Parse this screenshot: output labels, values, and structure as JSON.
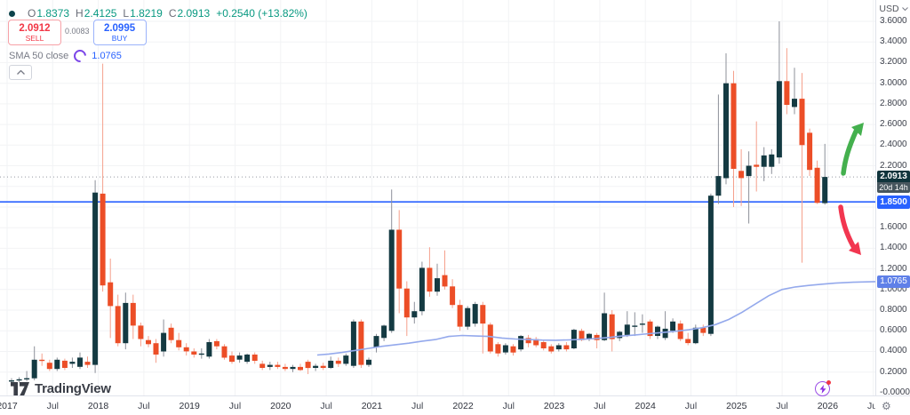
{
  "legend": {
    "o_label": "O",
    "o_value": "1.8373",
    "h_label": "H",
    "h_value": "2.4125",
    "l_label": "L",
    "l_value": "1.8219",
    "c_label": "C",
    "c_value": "2.0913",
    "change": "+0.2540 (+13.82%)"
  },
  "order_panel": {
    "sell_price": "2.0912",
    "sell_label": "SELL",
    "spread": "0.0083",
    "buy_price": "2.0995",
    "buy_label": "BUY"
  },
  "indicator": {
    "name": "SMA 50 close",
    "value": "1.0765"
  },
  "logo": {
    "text": "TradingView"
  },
  "price_axis": {
    "currency": "USD",
    "tick_labels": [
      "3.6000",
      "3.4000",
      "3.2000",
      "3.0000",
      "2.8000",
      "2.6000",
      "2.4000",
      "2.2000",
      "2.0000",
      "1.8000",
      "1.6000",
      "1.4000",
      "1.2000",
      "1.0000",
      "0.8000",
      "0.6000",
      "0.4000",
      "0.2000",
      "-0.0000"
    ],
    "last_price": "2.0913",
    "countdown": "20d 14h",
    "alert_price": "1.8500",
    "sma_price": "1.0765"
  },
  "time_axis": {
    "ticks": [
      {
        "label": "2017",
        "major": true
      },
      {
        "label": "Jul",
        "major": false
      },
      {
        "label": "2018",
        "major": true
      },
      {
        "label": "Jul",
        "major": false
      },
      {
        "label": "2019",
        "major": true
      },
      {
        "label": "Jul",
        "major": false
      },
      {
        "label": "2020",
        "major": true
      },
      {
        "label": "Jul",
        "major": false
      },
      {
        "label": "2021",
        "major": true
      },
      {
        "label": "Jul",
        "major": false
      },
      {
        "label": "2022",
        "major": true
      },
      {
        "label": "Jul",
        "major": false
      },
      {
        "label": "2023",
        "major": true
      },
      {
        "label": "Jul",
        "major": false
      },
      {
        "label": "2024",
        "major": true
      },
      {
        "label": "Jul",
        "major": false
      },
      {
        "label": "2025",
        "major": true
      },
      {
        "label": "Jul",
        "major": false
      },
      {
        "label": "2026",
        "major": true
      },
      {
        "label": "Jul",
        "major": false
      }
    ]
  },
  "chart_data": {
    "type": "candlestick",
    "unit": "USD",
    "timeframe": "monthly",
    "ylim": [
      0,
      3.6
    ],
    "y_tick_step": 0.2,
    "x_range_years": [
      2017,
      2026
    ],
    "current_bar": {
      "open": 1.8373,
      "high": 2.4125,
      "low": 1.8219,
      "close": 2.0913,
      "change": 0.254,
      "change_pct": 13.82,
      "countdown": "20d 14h"
    },
    "candles": [
      [
        0.12,
        0.14,
        0.1,
        0.12
      ],
      [
        0.12,
        0.15,
        0.1,
        0.13
      ],
      [
        0.13,
        0.21,
        0.11,
        0.14
      ],
      [
        0.14,
        0.45,
        0.12,
        0.32
      ],
      [
        0.32,
        0.38,
        0.26,
        0.31
      ],
      [
        0.29,
        0.32,
        0.21,
        0.23
      ],
      [
        0.23,
        0.34,
        0.21,
        0.32
      ],
      [
        0.31,
        0.33,
        0.22,
        0.24
      ],
      [
        0.28,
        0.34,
        0.24,
        0.3
      ],
      [
        0.25,
        0.39,
        0.23,
        0.34
      ],
      [
        0.3,
        0.35,
        0.24,
        0.27
      ],
      [
        0.27,
        2.06,
        0.19,
        1.94
      ],
      [
        1.93,
        3.19,
        0.98,
        1.04
      ],
      [
        1.07,
        1.3,
        0.53,
        0.84
      ],
      [
        0.84,
        0.95,
        0.45,
        0.48
      ],
      [
        0.48,
        0.97,
        0.42,
        0.87
      ],
      [
        0.87,
        0.95,
        0.52,
        0.65
      ],
      [
        0.65,
        0.68,
        0.45,
        0.52
      ],
      [
        0.51,
        0.55,
        0.44,
        0.47
      ],
      [
        0.48,
        0.52,
        0.29,
        0.37
      ],
      [
        0.4,
        0.71,
        0.35,
        0.58
      ],
      [
        0.63,
        0.67,
        0.48,
        0.51
      ],
      [
        0.51,
        0.58,
        0.41,
        0.44
      ],
      [
        0.44,
        0.48,
        0.36,
        0.4
      ],
      [
        0.4,
        0.43,
        0.34,
        0.37
      ],
      [
        0.37,
        0.43,
        0.33,
        0.38
      ],
      [
        0.35,
        0.52,
        0.33,
        0.49
      ],
      [
        0.5,
        0.52,
        0.42,
        0.45
      ],
      [
        0.45,
        0.47,
        0.32,
        0.34
      ],
      [
        0.36,
        0.4,
        0.28,
        0.3
      ],
      [
        0.32,
        0.39,
        0.29,
        0.36
      ],
      [
        0.3,
        0.38,
        0.28,
        0.37
      ],
      [
        0.37,
        0.39,
        0.28,
        0.31
      ],
      [
        0.28,
        0.31,
        0.22,
        0.24
      ],
      [
        0.25,
        0.3,
        0.22,
        0.27
      ],
      [
        0.27,
        0.3,
        0.23,
        0.25
      ],
      [
        0.25,
        0.28,
        0.21,
        0.23
      ],
      [
        0.23,
        0.27,
        0.2,
        0.25
      ],
      [
        0.25,
        0.28,
        0.21,
        0.22
      ],
      [
        0.3,
        0.32,
        0.18,
        0.24
      ],
      [
        0.24,
        0.28,
        0.21,
        0.26
      ],
      [
        0.26,
        0.29,
        0.22,
        0.24
      ],
      [
        0.24,
        0.35,
        0.23,
        0.31
      ],
      [
        0.31,
        0.34,
        0.25,
        0.28
      ],
      [
        0.28,
        0.38,
        0.26,
        0.36
      ],
      [
        0.26,
        0.71,
        0.24,
        0.69
      ],
      [
        0.69,
        0.71,
        0.24,
        0.27
      ],
      [
        0.27,
        0.34,
        0.25,
        0.32
      ],
      [
        0.44,
        0.57,
        0.39,
        0.55
      ],
      [
        0.53,
        0.66,
        0.5,
        0.65
      ],
      [
        0.6,
        1.97,
        0.58,
        1.58
      ],
      [
        1.58,
        1.77,
        0.77,
        1.01
      ],
      [
        1.01,
        1.08,
        0.55,
        0.73
      ],
      [
        0.73,
        0.88,
        0.67,
        0.79
      ],
      [
        0.79,
        1.27,
        0.75,
        1.21
      ],
      [
        1.21,
        1.41,
        0.93,
        0.98
      ],
      [
        0.98,
        1.25,
        0.94,
        1.11
      ],
      [
        1.14,
        1.38,
        1.0,
        1.03
      ],
      [
        1.03,
        1.1,
        0.82,
        0.85
      ],
      [
        0.85,
        0.9,
        0.6,
        0.64
      ],
      [
        0.64,
        0.84,
        0.61,
        0.82
      ],
      [
        0.67,
        0.88,
        0.64,
        0.86
      ],
      [
        0.85,
        0.88,
        0.38,
        0.67
      ],
      [
        0.66,
        0.68,
        0.38,
        0.4
      ],
      [
        0.47,
        0.49,
        0.35,
        0.38
      ],
      [
        0.39,
        0.48,
        0.37,
        0.46
      ],
      [
        0.45,
        0.47,
        0.36,
        0.39
      ],
      [
        0.42,
        0.56,
        0.4,
        0.55
      ],
      [
        0.53,
        0.56,
        0.44,
        0.48
      ],
      [
        0.52,
        0.54,
        0.44,
        0.46
      ],
      [
        0.49,
        0.51,
        0.41,
        0.43
      ],
      [
        0.45,
        0.47,
        0.38,
        0.4
      ],
      [
        0.42,
        0.48,
        0.4,
        0.46
      ],
      [
        0.46,
        0.49,
        0.4,
        0.42
      ],
      [
        0.43,
        0.62,
        0.42,
        0.61
      ],
      [
        0.6,
        0.62,
        0.5,
        0.51
      ],
      [
        0.52,
        0.58,
        0.5,
        0.57
      ],
      [
        0.56,
        0.58,
        0.43,
        0.51
      ],
      [
        0.51,
        0.97,
        0.5,
        0.77
      ],
      [
        0.76,
        0.8,
        0.4,
        0.52
      ],
      [
        0.53,
        0.6,
        0.5,
        0.59
      ],
      [
        0.56,
        0.79,
        0.54,
        0.66
      ],
      [
        0.65,
        0.78,
        0.55,
        0.65
      ],
      [
        0.66,
        0.76,
        0.58,
        0.67
      ],
      [
        0.69,
        0.71,
        0.52,
        0.55
      ],
      [
        0.55,
        0.65,
        0.52,
        0.64
      ],
      [
        0.53,
        0.79,
        0.51,
        0.62
      ],
      [
        0.6,
        0.72,
        0.58,
        0.69
      ],
      [
        0.67,
        0.7,
        0.5,
        0.52
      ],
      [
        0.52,
        0.58,
        0.46,
        0.48
      ],
      [
        0.48,
        0.66,
        0.47,
        0.63
      ],
      [
        0.63,
        0.66,
        0.55,
        0.58
      ],
      [
        0.57,
        1.93,
        0.55,
        1.91
      ],
      [
        1.91,
        2.89,
        1.83,
        2.1
      ],
      [
        2.08,
        3.29,
        2.02,
        3.0
      ],
      [
        3.0,
        3.12,
        1.8,
        2.17
      ],
      [
        2.15,
        2.36,
        1.81,
        2.08
      ],
      [
        2.1,
        2.34,
        1.64,
        2.2
      ],
      [
        2.21,
        2.63,
        1.95,
        2.19
      ],
      [
        2.19,
        2.38,
        2.05,
        2.3
      ],
      [
        2.19,
        2.36,
        2.12,
        2.31
      ],
      [
        2.28,
        3.6,
        2.22,
        3.02
      ],
      [
        3.02,
        3.34,
        2.7,
        2.79
      ],
      [
        2.77,
        3.15,
        2.7,
        2.85
      ],
      [
        2.85,
        3.1,
        1.26,
        2.4
      ],
      [
        2.52,
        2.56,
        2.1,
        2.16
      ],
      [
        2.18,
        2.25,
        1.83,
        1.84
      ],
      [
        1.8373,
        2.4125,
        1.8219,
        2.0913
      ]
    ],
    "sma50_points": [
      [
        357,
        0.365
      ],
      [
        370,
        0.375
      ],
      [
        385,
        0.39
      ],
      [
        400,
        0.41
      ],
      [
        415,
        0.43
      ],
      [
        430,
        0.45
      ],
      [
        445,
        0.465
      ],
      [
        460,
        0.48
      ],
      [
        475,
        0.5
      ],
      [
        490,
        0.515
      ],
      [
        505,
        0.545
      ],
      [
        520,
        0.555
      ],
      [
        535,
        0.55
      ],
      [
        550,
        0.545
      ],
      [
        565,
        0.53
      ],
      [
        580,
        0.52
      ],
      [
        595,
        0.515
      ],
      [
        610,
        0.51
      ],
      [
        625,
        0.508
      ],
      [
        640,
        0.512
      ],
      [
        655,
        0.518
      ],
      [
        670,
        0.525
      ],
      [
        685,
        0.535
      ],
      [
        700,
        0.55
      ],
      [
        715,
        0.56
      ],
      [
        730,
        0.572
      ],
      [
        745,
        0.583
      ],
      [
        760,
        0.595
      ],
      [
        775,
        0.61
      ],
      [
        790,
        0.63
      ],
      [
        805,
        0.66
      ],
      [
        820,
        0.71
      ],
      [
        835,
        0.78
      ],
      [
        850,
        0.86
      ],
      [
        865,
        0.94
      ],
      [
        880,
        1.0
      ],
      [
        895,
        1.025
      ],
      [
        910,
        1.04
      ],
      [
        925,
        1.052
      ],
      [
        940,
        1.062
      ],
      [
        960,
        1.071
      ],
      [
        985,
        1.0765
      ]
    ],
    "hlines": [
      {
        "price": 2.0913,
        "style": "dotted",
        "color": "#9598a1",
        "name": "last-price-line"
      },
      {
        "price": 1.85,
        "style": "solid",
        "color": "#2962ff",
        "name": "horizontal-line-1.85"
      }
    ],
    "colors": {
      "up": "#143a42",
      "down": "#ec4e27",
      "up_wick": "#8c9099",
      "down_wick": "#f5a08c",
      "sma": "#94a9ec",
      "accent_blue": "#2962ff",
      "value_green": "#089981",
      "sell_red": "#f23645"
    },
    "drawings": [
      {
        "type": "arrow-up",
        "x": 946,
        "y": 138,
        "color": "#44b04e"
      },
      {
        "type": "arrow-down",
        "x": 944,
        "y": 232,
        "color": "#f23650"
      }
    ]
  }
}
